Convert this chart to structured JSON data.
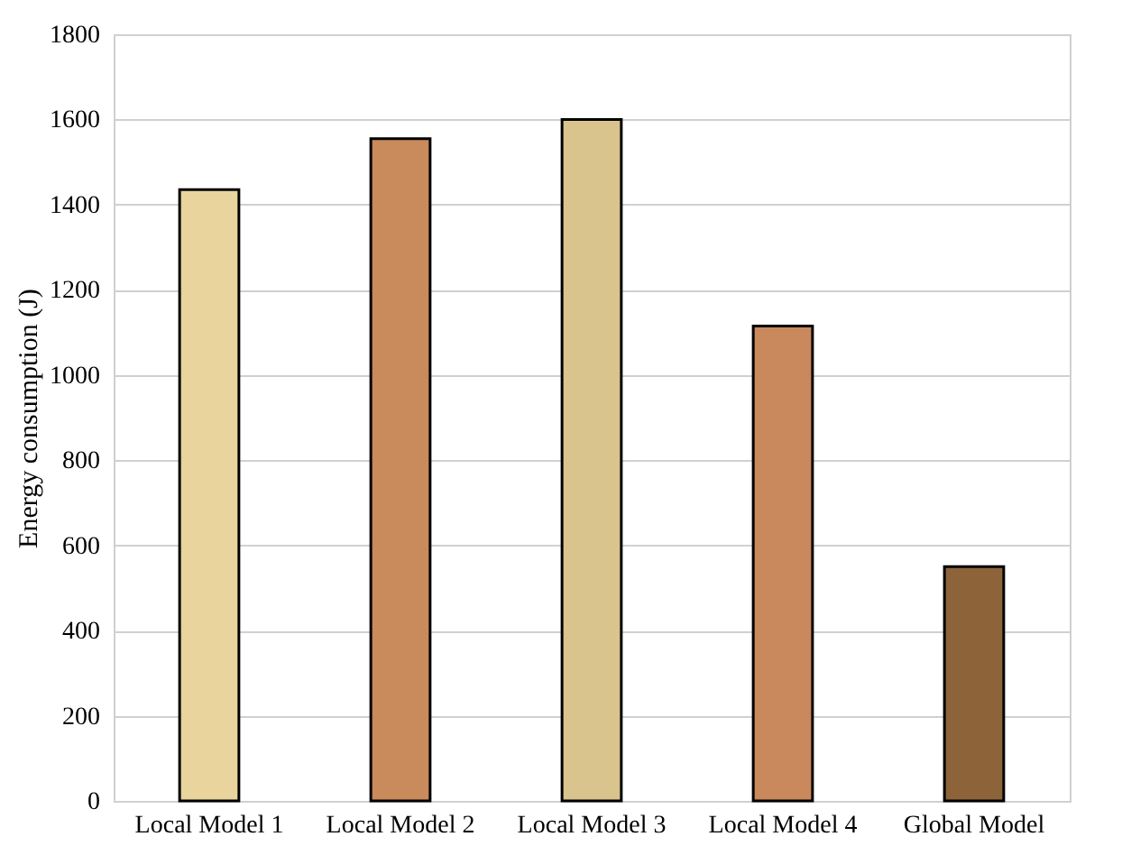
{
  "chart_data": {
    "type": "bar",
    "ylabel": "Energy consumption (J)",
    "categories": [
      "Local Model 1",
      "Local Model 2",
      "Local Model 3",
      "Local Model 4",
      "Global Model"
    ],
    "values": [
      1435,
      1555,
      1600,
      1115,
      550
    ],
    "colors": [
      "#e8d49c",
      "#c98a5c",
      "#d8c48c",
      "#c9895c",
      "#8d6339"
    ],
    "ylim": [
      0,
      1800
    ],
    "yticks": [
      0,
      200,
      400,
      600,
      800,
      1000,
      1200,
      1400,
      1600,
      1800
    ],
    "grid": "y"
  }
}
